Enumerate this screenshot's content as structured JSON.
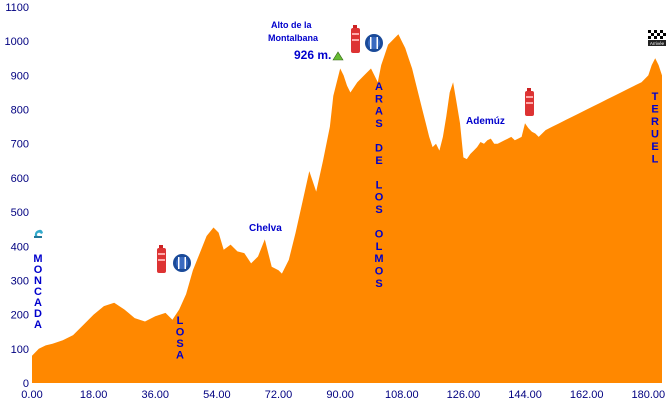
{
  "chart_data": {
    "type": "area",
    "title": "",
    "xlabel": "",
    "ylabel": "",
    "xlim": [
      0,
      184
    ],
    "ylim": [
      0,
      1100
    ],
    "x_ticks": [
      "0.00",
      "18.00",
      "36.00",
      "54.00",
      "72.00",
      "90.00",
      "108.00",
      "126.00",
      "144.00",
      "162.00",
      "180.00"
    ],
    "y_ticks": [
      "0",
      "100",
      "200",
      "300",
      "400",
      "500",
      "600",
      "700",
      "800",
      "900",
      "1000",
      "1100"
    ],
    "fill_color": "#ff8800",
    "x": [
      0,
      2,
      4,
      6,
      9,
      12,
      15,
      18,
      21,
      24,
      27,
      30,
      33,
      36,
      39,
      41,
      43,
      45,
      47,
      49,
      51,
      53,
      54.5,
      56,
      58,
      60,
      62,
      64,
      66,
      68,
      70,
      72,
      73,
      75,
      77,
      79,
      81,
      83,
      85,
      87,
      88,
      90,
      91,
      92,
      93,
      95,
      97,
      99,
      101,
      102,
      103,
      104,
      105,
      106,
      107,
      108,
      109,
      110,
      111,
      112,
      113,
      114,
      115,
      116,
      117,
      118,
      119,
      120,
      121,
      122,
      123,
      124,
      125,
      126,
      127,
      128,
      129,
      130,
      131,
      132,
      133,
      134,
      135,
      136,
      137,
      138,
      139,
      140,
      141,
      142,
      143,
      144,
      145,
      146,
      147,
      148,
      150,
      152,
      154,
      156,
      158,
      160,
      162,
      164,
      166,
      168,
      170,
      172,
      174,
      176,
      178,
      180,
      181,
      182,
      183,
      184
    ],
    "y": [
      80,
      100,
      110,
      115,
      125,
      140,
      170,
      200,
      225,
      235,
      215,
      190,
      180,
      195,
      205,
      185,
      215,
      260,
      330,
      380,
      430,
      455,
      440,
      390,
      405,
      385,
      380,
      350,
      370,
      420,
      340,
      330,
      320,
      360,
      440,
      530,
      620,
      560,
      650,
      750,
      840,
      920,
      900,
      870,
      850,
      880,
      900,
      920,
      880,
      930,
      960,
      990,
      1000,
      1010,
      1020,
      1000,
      980,
      950,
      920,
      880,
      840,
      800,
      760,
      720,
      690,
      700,
      680,
      720,
      780,
      850,
      880,
      820,
      760,
      660,
      655,
      670,
      680,
      690,
      705,
      700,
      710,
      715,
      700,
      700,
      705,
      710,
      715,
      720,
      710,
      715,
      720,
      760,
      745,
      735,
      730,
      720,
      740,
      750,
      760,
      770,
      780,
      790,
      800,
      810,
      820,
      830,
      840,
      850,
      860,
      870,
      880,
      900,
      930,
      950,
      930,
      900
    ],
    "place_labels": [
      "MONCADA",
      "LOSA",
      "Chelva",
      "ARAS DE LOS OLMOS",
      "Ademúz",
      "TERUEL"
    ],
    "pass_label_line1": "Alto de la",
    "pass_label_line2": "Montalbana",
    "pass_altitude": "926 m.",
    "icons": [
      "fountain-icon",
      "water-bottle-icon",
      "restaurant-icon",
      "mountain-pass-icon",
      "finish-flag-icon"
    ],
    "finish_flag_text": "Arrivée",
    "grid": false,
    "legend": "none"
  }
}
